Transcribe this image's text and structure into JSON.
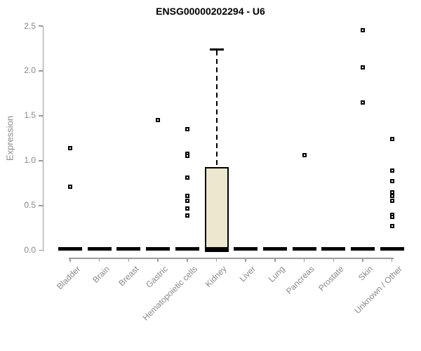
{
  "chart_data": {
    "type": "boxplot",
    "title": "ENSG00000202294 - U6",
    "xlabel": "",
    "ylabel": "Expression",
    "ylim": [
      0,
      2.5
    ],
    "yticks": [
      "0.0",
      "0.5",
      "1.0",
      "1.5",
      "2.0",
      "2.5"
    ],
    "grid": false,
    "legend": false,
    "categories": [
      "Bladder",
      "Brain",
      "Breast",
      "Gastric",
      "Hematopoietic cells",
      "Kidney",
      "Liver",
      "Lung",
      "Pancreas",
      "Prostate",
      "Skin",
      "Unknown / Other"
    ],
    "boxes": [
      {
        "category": "Bladder",
        "q1": 0,
        "median": 0,
        "q3": 0,
        "whisker_low": 0,
        "whisker_high": 0,
        "outliers": [
          1.14,
          0.71
        ]
      },
      {
        "category": "Brain",
        "q1": 0,
        "median": 0,
        "q3": 0,
        "whisker_low": 0,
        "whisker_high": 0,
        "outliers": []
      },
      {
        "category": "Breast",
        "q1": 0,
        "median": 0,
        "q3": 0,
        "whisker_low": 0,
        "whisker_high": 0,
        "outliers": []
      },
      {
        "category": "Gastric",
        "q1": 0,
        "median": 0,
        "q3": 0,
        "whisker_low": 0,
        "whisker_high": 0,
        "outliers": [
          1.45
        ]
      },
      {
        "category": "Hematopoietic cells",
        "q1": 0,
        "median": 0,
        "q3": 0,
        "whisker_low": 0,
        "whisker_high": 0,
        "outliers": [
          1.35,
          1.08,
          1.05,
          0.81,
          0.61,
          0.55,
          0.47,
          0.39
        ]
      },
      {
        "category": "Kidney",
        "q1": 0,
        "median": 0,
        "q3": 0.93,
        "whisker_low": 0,
        "whisker_high": 2.24,
        "outliers": []
      },
      {
        "category": "Liver",
        "q1": 0,
        "median": 0,
        "q3": 0,
        "whisker_low": 0,
        "whisker_high": 0,
        "outliers": []
      },
      {
        "category": "Lung",
        "q1": 0,
        "median": 0,
        "q3": 0,
        "whisker_low": 0,
        "whisker_high": 0,
        "outliers": []
      },
      {
        "category": "Pancreas",
        "q1": 0,
        "median": 0,
        "q3": 0,
        "whisker_low": 0,
        "whisker_high": 0,
        "outliers": [
          1.06
        ]
      },
      {
        "category": "Prostate",
        "q1": 0,
        "median": 0,
        "q3": 0,
        "whisker_low": 0,
        "whisker_high": 0,
        "outliers": []
      },
      {
        "category": "Skin",
        "q1": 0,
        "median": 0,
        "q3": 0,
        "whisker_low": 0,
        "whisker_high": 0,
        "outliers": [
          2.45,
          2.04,
          1.65
        ]
      },
      {
        "category": "Unknown / Other",
        "q1": 0,
        "median": 0,
        "q3": 0,
        "whisker_low": 0,
        "whisker_high": 0,
        "outliers": [
          1.24,
          0.89,
          0.77,
          0.65,
          0.61,
          0.55,
          0.4,
          0.37,
          0.27
        ]
      }
    ],
    "colors": {
      "box_fill": "#ece8d0",
      "box_border": "#000000",
      "median": "#000000",
      "point": "#000000",
      "axis": "#9b9b9b",
      "tick_label": "#898989",
      "title": "#000000",
      "background": "#ffffff"
    }
  }
}
